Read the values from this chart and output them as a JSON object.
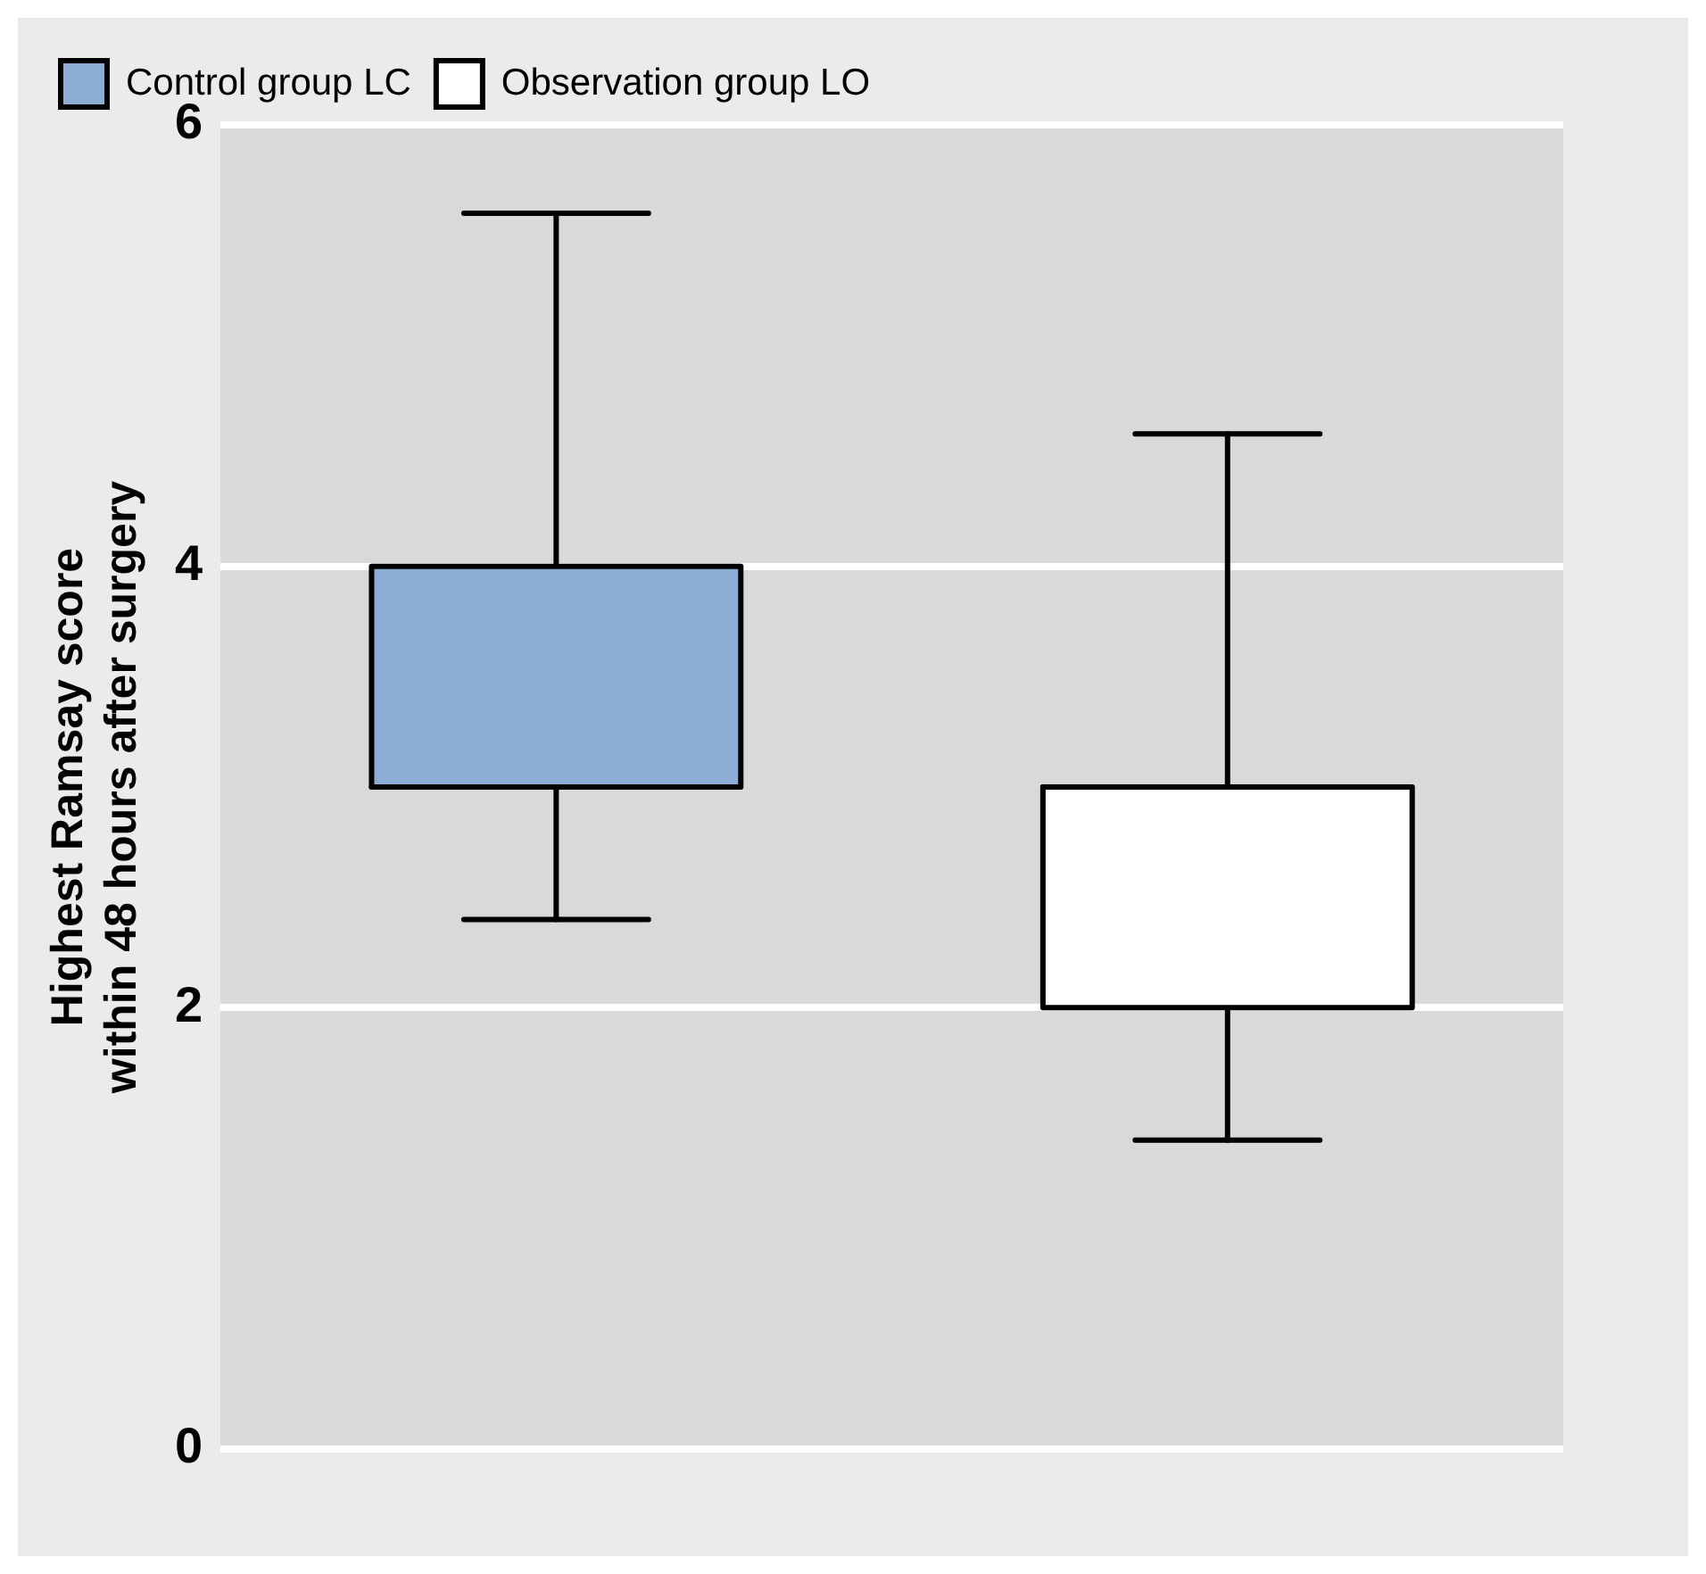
{
  "chart_data": {
    "type": "box",
    "ylabel": "Highest Ramsay score within 48 hours after surgery",
    "categories": [
      null,
      null
    ],
    "series": [
      {
        "name": "Control group LC",
        "color": "#8eadd4",
        "boxes": [
          {
            "low": 2.4,
            "q1": 3,
            "median": 3,
            "q3": 4,
            "high": 5.6
          },
          null
        ]
      },
      {
        "name": "Observation group LO",
        "color": "#ffffff",
        "boxes": [
          null,
          {
            "low": 1.4,
            "q1": 2,
            "median": 3,
            "q3": 3,
            "high": 4.6
          }
        ]
      }
    ],
    "ylim": [
      0,
      6
    ],
    "yticks": [
      0,
      2,
      4,
      6
    ],
    "grid": "y",
    "legend": "top left"
  }
}
